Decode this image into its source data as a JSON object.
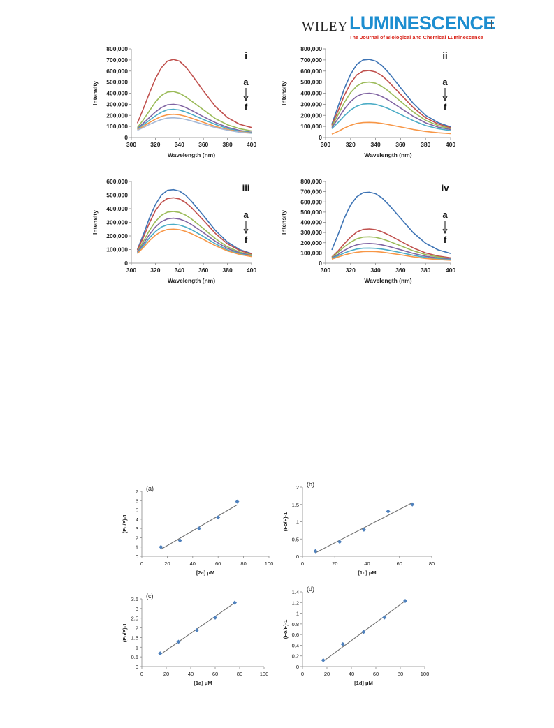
{
  "header": {
    "publisher": "WILEY",
    "journal": "LUMINESCENCE",
    "journal_subtitle": "The Journal of Biological and Chemical Luminescence"
  },
  "colors": {
    "curves": [
      "#3e74b5",
      "#c0504d",
      "#9bbb59",
      "#8064a2",
      "#4bacc6",
      "#f79646"
    ],
    "panel_i_curves": [
      "#c0504d",
      "#9bbb59",
      "#8064a2",
      "#4bacc6",
      "#f79646",
      "#a5b8d6"
    ],
    "marker": "#4f81bd",
    "fitline": "#707070"
  },
  "chart_data": [
    {
      "type": "line",
      "panel_label": "i",
      "arrow_top": "a",
      "arrow_bottom": "f",
      "xlabel": "Wavelength (nm)",
      "ylabel": "Intensity",
      "xlim": [
        300,
        400
      ],
      "ylim": [
        0,
        800000
      ],
      "xticks": [
        "300",
        "320",
        "340",
        "360",
        "380",
        "400"
      ],
      "yticks": [
        "0",
        "100,000",
        "200,000",
        "300,000",
        "400,000",
        "500,000",
        "600,000",
        "700,000",
        "800,000"
      ],
      "x": [
        305,
        310,
        315,
        320,
        325,
        330,
        335,
        340,
        345,
        350,
        360,
        370,
        380,
        390,
        400
      ],
      "series": [
        {
          "values": [
            130000,
            260000,
            400000,
            530000,
            630000,
            690000,
            705000,
            690000,
            640000,
            570000,
            420000,
            280000,
            180000,
            120000,
            90000
          ]
        },
        {
          "values": [
            90000,
            160000,
            240000,
            320000,
            380000,
            410000,
            415000,
            400000,
            370000,
            330000,
            250000,
            170000,
            115000,
            80000,
            60000
          ]
        },
        {
          "values": [
            80000,
            130000,
            180000,
            230000,
            270000,
            295000,
            300000,
            292000,
            272000,
            245000,
            188000,
            135000,
            92000,
            64000,
            48000
          ]
        },
        {
          "values": [
            75000,
            115000,
            155000,
            195000,
            228000,
            250000,
            255000,
            248000,
            232000,
            210000,
            162000,
            118000,
            82000,
            58000,
            44000
          ]
        },
        {
          "values": [
            70000,
            100000,
            135000,
            165000,
            190000,
            205000,
            210000,
            205000,
            192000,
            175000,
            137000,
            100000,
            72000,
            52000,
            40000
          ]
        },
        {
          "values": [
            65000,
            90000,
            118000,
            142000,
            162000,
            175000,
            178000,
            174000,
            164000,
            150000,
            120000,
            90000,
            66000,
            48000,
            38000
          ]
        }
      ]
    },
    {
      "type": "line",
      "panel_label": "ii",
      "arrow_top": "a",
      "arrow_bottom": "f",
      "xlabel": "Wavelength (nm)",
      "ylabel": "Intensity",
      "xlim": [
        300,
        400
      ],
      "ylim": [
        0,
        800000
      ],
      "xticks": [
        "300",
        "320",
        "340",
        "360",
        "380",
        "400"
      ],
      "yticks": [
        "0",
        "100,000",
        "200,000",
        "300,000",
        "400,000",
        "500,000",
        "600,000",
        "700,000",
        "800,000"
      ],
      "x": [
        305,
        310,
        315,
        320,
        325,
        330,
        335,
        340,
        345,
        350,
        360,
        370,
        380,
        390,
        400
      ],
      "series": [
        {
          "values": [
            120000,
            280000,
            440000,
            570000,
            660000,
            700000,
            705000,
            690000,
            650000,
            590000,
            450000,
            310000,
            200000,
            135000,
            95000
          ]
        },
        {
          "values": [
            110000,
            240000,
            380000,
            490000,
            565000,
            600000,
            605000,
            592000,
            558000,
            508000,
            390000,
            272000,
            178000,
            122000,
            88000
          ]
        },
        {
          "values": [
            100000,
            205000,
            315000,
            405000,
            465000,
            495000,
            500000,
            490000,
            462000,
            422000,
            327000,
            232000,
            155000,
            108000,
            80000
          ]
        },
        {
          "values": [
            90000,
            170000,
            255000,
            325000,
            372000,
            395000,
            400000,
            392000,
            370000,
            340000,
            266000,
            192000,
            132000,
            94000,
            72000
          ]
        },
        {
          "values": [
            80000,
            135000,
            195000,
            248000,
            283000,
            302000,
            305000,
            299000,
            283000,
            262000,
            208000,
            153000,
            108000,
            80000,
            62000
          ]
        },
        {
          "values": [
            30000,
            55000,
            85000,
            110000,
            127000,
            135000,
            137000,
            134000,
            127000,
            117000,
            95000,
            73000,
            55000,
            43000,
            35000
          ]
        }
      ]
    },
    {
      "type": "line",
      "panel_label": "iii",
      "arrow_top": "a",
      "arrow_bottom": "f",
      "xlabel": "Wavelength (nm)",
      "ylabel": "Intensity",
      "xlim": [
        300,
        400
      ],
      "ylim": [
        0,
        600000
      ],
      "xticks": [
        "300",
        "320",
        "340",
        "360",
        "380",
        "400"
      ],
      "yticks": [
        "0",
        "100,000",
        "200,000",
        "300,000",
        "400,000",
        "500,000",
        "600,000"
      ],
      "x": [
        305,
        310,
        315,
        320,
        325,
        330,
        335,
        340,
        345,
        350,
        360,
        370,
        380,
        390,
        400
      ],
      "series": [
        {
          "values": [
            100000,
            210000,
            330000,
            430000,
            500000,
            535000,
            540000,
            530000,
            500000,
            455000,
            350000,
            240000,
            155000,
            100000,
            70000
          ]
        },
        {
          "values": [
            95000,
            190000,
            295000,
            385000,
            445000,
            475000,
            480000,
            472000,
            446000,
            408000,
            315000,
            218000,
            142000,
            94000,
            66000
          ]
        },
        {
          "values": [
            85000,
            160000,
            240000,
            305000,
            352000,
            375000,
            380000,
            373000,
            354000,
            325000,
            254000,
            180000,
            120000,
            82000,
            60000
          ]
        },
        {
          "values": [
            80000,
            142000,
            210000,
            265000,
            305000,
            325000,
            330000,
            324000,
            308000,
            284000,
            224000,
            160000,
            108000,
            75000,
            56000
          ]
        },
        {
          "values": [
            75000,
            128000,
            185000,
            232000,
            265000,
            282000,
            285000,
            280000,
            266000,
            246000,
            196000,
            142000,
            97000,
            69000,
            52000
          ]
        },
        {
          "values": [
            70000,
            115000,
            165000,
            205000,
            233000,
            247000,
            250000,
            246000,
            234000,
            217000,
            174000,
            128000,
            90000,
            64000,
            48000
          ]
        }
      ]
    },
    {
      "type": "line",
      "panel_label": "iv",
      "arrow_top": "a",
      "arrow_bottom": "f",
      "xlabel": "Wavelength (nm)",
      "ylabel": "Intensity",
      "xlim": [
        300,
        400
      ],
      "ylim": [
        0,
        800000
      ],
      "xticks": [
        "300",
        "320",
        "340",
        "360",
        "380",
        "400"
      ],
      "yticks": [
        "0",
        "100,000",
        "200,000",
        "300,000",
        "400,000",
        "500,000",
        "600,000",
        "700,000",
        "800,000"
      ],
      "x": [
        305,
        310,
        315,
        320,
        325,
        330,
        335,
        340,
        345,
        350,
        360,
        370,
        380,
        390,
        400
      ],
      "series": [
        {
          "values": [
            130000,
            280000,
            440000,
            570000,
            650000,
            690000,
            695000,
            680000,
            640000,
            580000,
            440000,
            300000,
            195000,
            130000,
            95000
          ]
        },
        {
          "values": [
            60000,
            120000,
            190000,
            255000,
            305000,
            330000,
            335000,
            328000,
            308000,
            280000,
            215000,
            150000,
            100000,
            70000,
            52000
          ]
        },
        {
          "values": [
            55000,
            105000,
            160000,
            205000,
            238000,
            255000,
            258000,
            253000,
            238000,
            218000,
            170000,
            122000,
            84000,
            60000,
            46000
          ]
        },
        {
          "values": [
            50000,
            85000,
            125000,
            158000,
            180000,
            190000,
            193000,
            189000,
            179000,
            165000,
            131000,
            96000,
            68000,
            50000,
            40000
          ]
        },
        {
          "values": [
            45000,
            72000,
            100000,
            122000,
            138000,
            146000,
            148000,
            145000,
            138000,
            128000,
            103000,
            77000,
            56000,
            42000,
            34000
          ]
        },
        {
          "values": [
            40000,
            60000,
            80000,
            96000,
            107000,
            113000,
            115000,
            113000,
            108000,
            100000,
            82000,
            62000,
            46000,
            35000,
            29000
          ]
        }
      ]
    },
    {
      "type": "scatter",
      "panel_label": "(a)",
      "xlabel": "[2a] μM",
      "ylabel": "(Fo/F)-1",
      "xlim": [
        0,
        100
      ],
      "ylim": [
        0,
        7
      ],
      "xticks": [
        "0",
        "20",
        "40",
        "60",
        "80",
        "100"
      ],
      "yticks": [
        "0",
        "1",
        "2",
        "3",
        "4",
        "5",
        "6",
        "7"
      ],
      "x": [
        15,
        30,
        45,
        60,
        75
      ],
      "y": [
        1.0,
        1.7,
        3.0,
        4.2,
        5.9
      ],
      "fit": {
        "x": [
          15,
          75
        ],
        "y": [
          0.75,
          5.55
        ]
      }
    },
    {
      "type": "scatter",
      "panel_label": "(b)",
      "xlabel": "[1c] μM",
      "ylabel": "(Fo/F)-1",
      "xlim": [
        0,
        80
      ],
      "ylim": [
        0,
        2
      ],
      "xticks": [
        "0",
        "20",
        "40",
        "60",
        "80"
      ],
      "yticks": [
        "0",
        "0.5",
        "1",
        "1.5",
        "2"
      ],
      "x": [
        8,
        23,
        38,
        53,
        68
      ],
      "y": [
        0.15,
        0.42,
        0.77,
        1.3,
        1.5
      ],
      "fit": {
        "x": [
          8,
          68
        ],
        "y": [
          0.1,
          1.55
        ]
      }
    },
    {
      "type": "scatter",
      "panel_label": "(c)",
      "xlabel": "[1a] μM",
      "ylabel": "(Fo/F)-1",
      "xlim": [
        0,
        100
      ],
      "ylim": [
        0,
        3.5
      ],
      "xticks": [
        "0",
        "20",
        "40",
        "60",
        "80",
        "100"
      ],
      "yticks": [
        "0",
        "0.5",
        "1",
        "1.5",
        "2",
        "2.5",
        "3",
        "3.5"
      ],
      "x": [
        15,
        30,
        45,
        60,
        76
      ],
      "y": [
        0.68,
        1.28,
        1.88,
        2.53,
        3.3
      ],
      "fit": {
        "x": [
          15,
          76
        ],
        "y": [
          0.62,
          3.3
        ]
      }
    },
    {
      "type": "scatter",
      "panel_label": "(d)",
      "xlabel": "[1d] μM",
      "ylabel": "(Fo/F)-1",
      "xlim": [
        0,
        100
      ],
      "ylim": [
        0,
        1.4
      ],
      "xticks": [
        "0",
        "20",
        "40",
        "60",
        "80",
        "100"
      ],
      "yticks": [
        "0",
        "0.2",
        "0.4",
        "0.6",
        "0.8",
        "1",
        "1.2",
        "1.4"
      ],
      "x": [
        17,
        33,
        50,
        67,
        84
      ],
      "y": [
        0.12,
        0.42,
        0.65,
        0.92,
        1.23
      ],
      "fit": {
        "x": [
          17,
          84
        ],
        "y": [
          0.1,
          1.23
        ]
      }
    }
  ]
}
